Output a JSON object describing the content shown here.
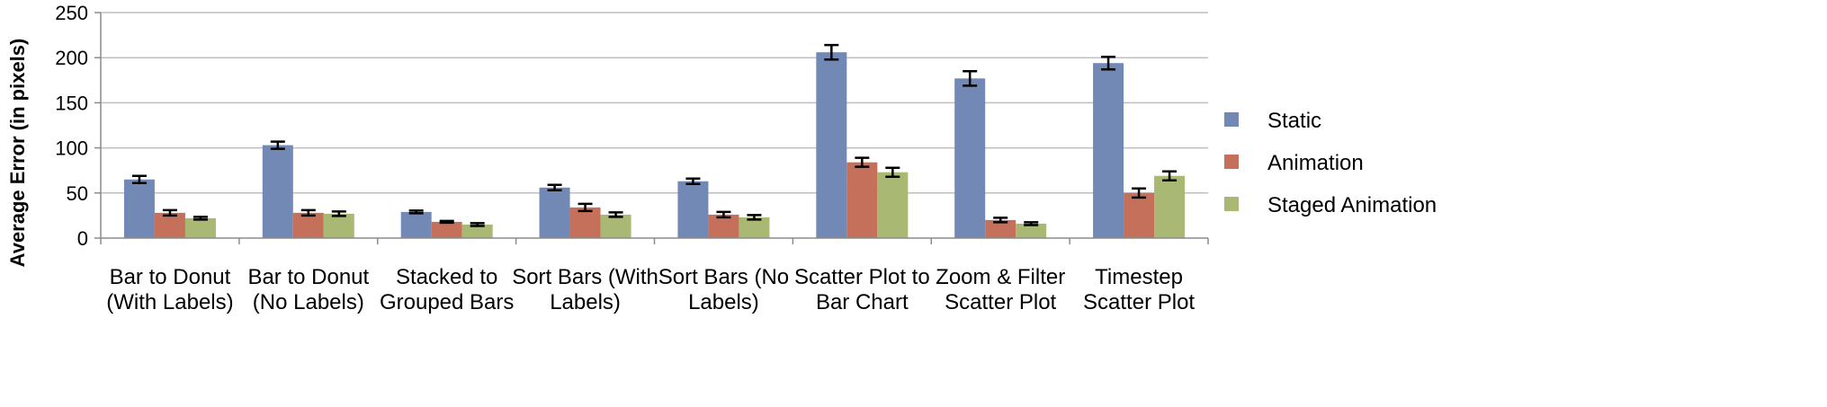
{
  "chart_data": {
    "type": "bar",
    "title": "",
    "xlabel": "",
    "ylabel": "Average Error  (in pixels)",
    "ylim": [
      0,
      250
    ],
    "yticks": [
      0,
      50,
      100,
      150,
      200,
      250
    ],
    "grid": true,
    "legend_position": "right",
    "categories": [
      [
        "Bar to Donut",
        "(With Labels)"
      ],
      [
        "Bar to Donut",
        "(No Labels)"
      ],
      [
        "Stacked to",
        "Grouped Bars"
      ],
      [
        "Sort Bars (With",
        "Labels)"
      ],
      [
        "Sort Bars (No",
        "Labels)"
      ],
      [
        "Scatter Plot to",
        "Bar Chart"
      ],
      [
        "Zoom & Filter",
        "Scatter Plot"
      ],
      [
        "Timestep",
        "Scatter Plot"
      ]
    ],
    "series": [
      {
        "name": "Static",
        "color": "#7389b5",
        "values": [
          65,
          103,
          29,
          56,
          63,
          206,
          177,
          194
        ],
        "errors": [
          4,
          4,
          1.5,
          3,
          3,
          8,
          8,
          7
        ]
      },
      {
        "name": "Animation",
        "color": "#c5705a",
        "values": [
          28,
          28,
          18,
          34,
          26,
          84,
          20,
          50
        ],
        "errors": [
          3,
          3,
          1,
          4,
          3,
          5,
          2.5,
          5
        ]
      },
      {
        "name": "Staged Animation",
        "color": "#a9b873",
        "values": [
          22,
          27,
          15,
          26,
          23,
          73,
          16,
          69
        ],
        "errors": [
          1.5,
          2.5,
          1.5,
          2.5,
          2.5,
          5,
          1.5,
          5
        ]
      }
    ]
  }
}
